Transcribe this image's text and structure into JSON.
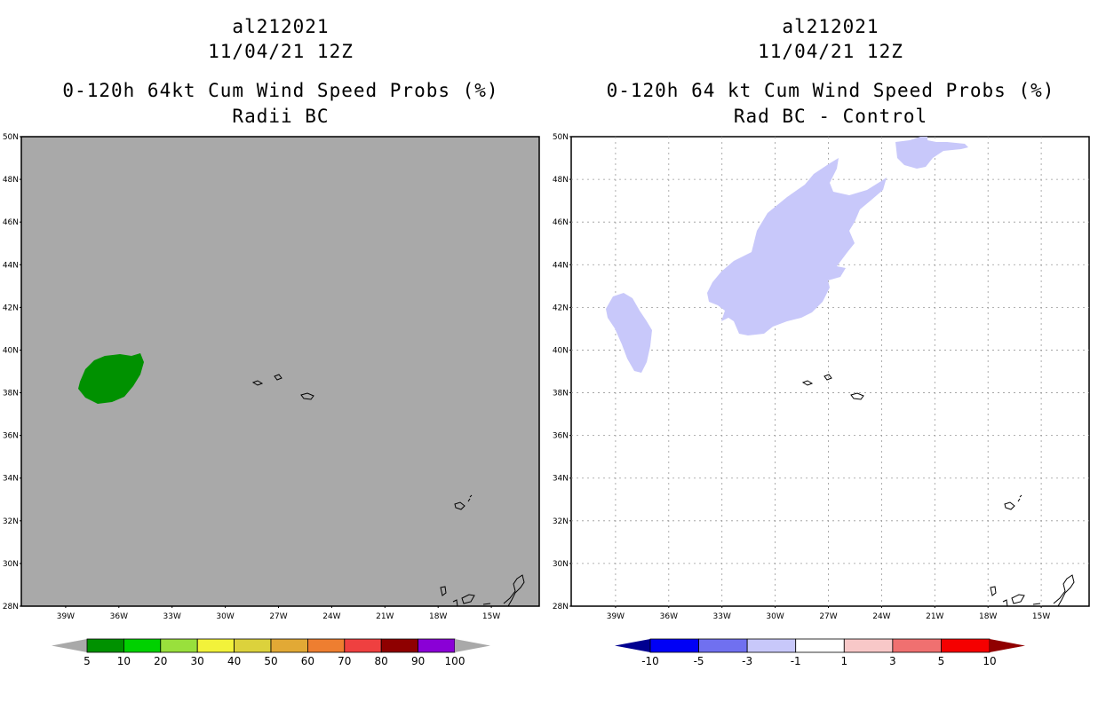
{
  "left_panel": {
    "title_line1": "al212021",
    "title_line2": "11/04/21 12Z",
    "title_line3": "0-120h 64kt Cum Wind Speed Probs (%)",
    "title_line4": "Radii BC",
    "background_color": "#a9a9a9",
    "colorbar": {
      "colors": [
        "#009100",
        "#00d100",
        "#99e03c",
        "#f2f23a",
        "#dcd23c",
        "#e2a935",
        "#ee7e30",
        "#ef4040",
        "#8f0000",
        "#8a00d6"
      ],
      "end_colors": [
        "#a9a9a9",
        "#a9a9a9"
      ],
      "labels": [
        "5",
        "10",
        "20",
        "30",
        "40",
        "50",
        "60",
        "70",
        "80",
        "90",
        "100"
      ]
    }
  },
  "right_panel": {
    "title_line1": "al212021",
    "title_line2": "11/04/21 12Z",
    "title_line3": "0-120h 64 kt Cum Wind Speed Probs (%)",
    "title_line4": "Rad BC - Control",
    "background_color": "#ffffff",
    "shading_color": "#c8c8fa",
    "colorbar": {
      "colors": [
        "#0000f6",
        "#7070f0",
        "#c8c8fa",
        "#ffffff",
        "#f8c8c8",
        "#f07070",
        "#f50000"
      ],
      "end_colors": [
        "#000090",
        "#900000"
      ],
      "labels": [
        "-10",
        "-5",
        "-3",
        "-1",
        "1",
        "3",
        "5",
        "10"
      ]
    }
  },
  "axes": {
    "lat_labels": [
      "50N",
      "48N",
      "46N",
      "44N",
      "42N",
      "40N",
      "38N",
      "36N",
      "34N",
      "32N",
      "30N",
      "28N"
    ],
    "lon_labels": [
      "39W",
      "36W",
      "33W",
      "30W",
      "27W",
      "24W",
      "21W",
      "18W",
      "15W"
    ]
  }
}
